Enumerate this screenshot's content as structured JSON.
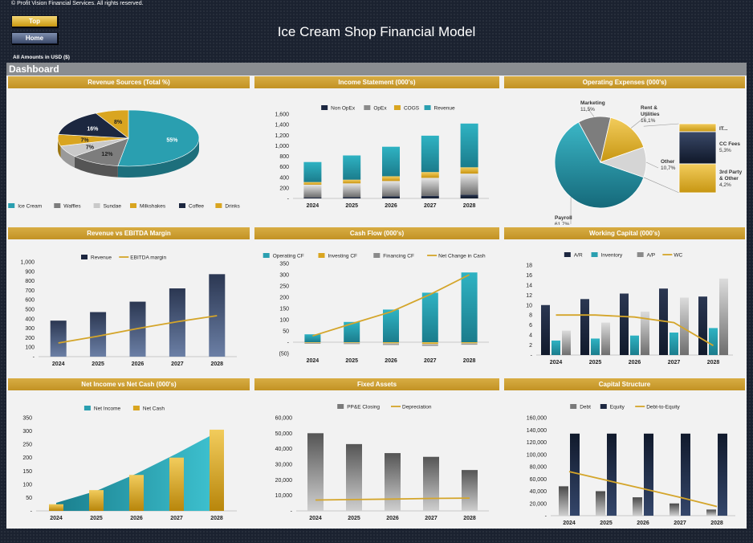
{
  "header": {
    "copyright": "© Profit Vision Financial Services. All rights reserved.",
    "top_button": "Top",
    "home_button": "Home",
    "title": "Ice Cream Shop Financial Model",
    "amounts_note": "All Amounts in  USD ($)",
    "dashboard_label": "Dashboard"
  },
  "colors": {
    "navy": "#1c2740",
    "teal": "#2a9fb0",
    "gold": "#d9a520",
    "gray": "#7a7a7a",
    "line_gold": "#d4a52a",
    "panel_bar": "#caa035"
  },
  "chart_data": [
    {
      "id": "revenue-sources",
      "type": "pie",
      "title": "Revenue Sources (Total %)",
      "legend": [
        "Ice Cream",
        "Waffles",
        "Sundae",
        "Milkshakes",
        "Coffee",
        "Drinks"
      ],
      "values": [
        55,
        12,
        7,
        7,
        16,
        8
      ],
      "labels": [
        "55%",
        "12%",
        "7%",
        "7%",
        "16%",
        "8%"
      ],
      "legend_position": "bottom",
      "style": "3d"
    },
    {
      "id": "income-statement",
      "type": "bar",
      "stacked": true,
      "title": "Income Statement (000's)",
      "categories": [
        "2024",
        "2025",
        "2026",
        "2027",
        "2028"
      ],
      "yticks": [
        "1,600",
        "1,400",
        "1,200",
        "1,000",
        "800",
        "600",
        "400",
        "200",
        "-"
      ],
      "ylim": [
        0,
        1600
      ],
      "series": [
        {
          "name": "Non OpEx",
          "values": [
            20,
            25,
            40,
            50,
            70
          ]
        },
        {
          "name": "OpEx",
          "values": [
            240,
            260,
            290,
            340,
            400
          ]
        },
        {
          "name": "COGS",
          "values": [
            50,
            70,
            90,
            110,
            120
          ]
        },
        {
          "name": "Revenue",
          "values": [
            380,
            460,
            560,
            690,
            830
          ]
        }
      ],
      "legend_position": "top"
    },
    {
      "id": "operating-expenses",
      "type": "pie",
      "title": "Operating Expenses (000's)",
      "slices": [
        {
          "name": "Payroll",
          "value": "61,7%"
        },
        {
          "name": "Marketing",
          "value": "11,5%"
        },
        {
          "name": "Rent & Utilities",
          "value": "16,1%"
        },
        {
          "name": "Other",
          "value": "10,7%"
        }
      ],
      "values": [
        61.7,
        11.5,
        16.1,
        10.7
      ],
      "breakdown": [
        {
          "name": "IT...",
          "value": ""
        },
        {
          "name": "CC Fees",
          "value": "5,3%"
        },
        {
          "name": "3rd Party & Other",
          "value": "4,2%"
        }
      ],
      "breakdown_values": [
        1.2,
        5.3,
        4.2
      ],
      "style": "pie-of-pie"
    },
    {
      "id": "revenue-ebitda",
      "type": "bar",
      "title": "Revenue vs EBITDA Margin",
      "categories": [
        "2024",
        "2025",
        "2026",
        "2027",
        "2028"
      ],
      "yticks": [
        "1,000",
        "900",
        "800",
        "700",
        "600",
        "500",
        "400",
        "300",
        "200",
        "100",
        "-"
      ],
      "ylim": [
        0,
        1000
      ],
      "series": [
        {
          "name": "Revenue",
          "values": [
            380,
            470,
            580,
            720,
            870
          ]
        }
      ],
      "line_series": [
        {
          "name": "EBITDA margin",
          "values": [
            0.16,
            0.24,
            0.33,
            0.41,
            0.48
          ]
        }
      ],
      "legend_position": "top"
    },
    {
      "id": "cash-flow",
      "type": "bar",
      "title": "Cash Flow (000's)",
      "categories": [
        "2024",
        "2025",
        "2026",
        "2027",
        "2028"
      ],
      "yticks": [
        "350",
        "300",
        "250",
        "200",
        "150",
        "100",
        "50",
        "-",
        "(50)"
      ],
      "ylim": [
        -50,
        350
      ],
      "series": [
        {
          "name": "Operating CF",
          "values": [
            35,
            90,
            145,
            220,
            310
          ]
        },
        {
          "name": "Investing CF",
          "values": [
            -3,
            -3,
            -5,
            -8,
            -5
          ]
        },
        {
          "name": "Financing CF",
          "values": [
            -4,
            -5,
            -7,
            -8,
            -6
          ]
        }
      ],
      "line_series": [
        {
          "name": "Net Change in Cash",
          "values": [
            28,
            82,
            135,
            212,
            300
          ]
        }
      ],
      "legend_position": "top"
    },
    {
      "id": "working-capital",
      "type": "bar",
      "title": "Working Capital (000's)",
      "categories": [
        "2024",
        "2025",
        "2026",
        "2027",
        "2028"
      ],
      "yticks": [
        "18",
        "16",
        "14",
        "12",
        "10",
        "8",
        "6",
        "4",
        "2",
        "-"
      ],
      "ylim": [
        0,
        18
      ],
      "series": [
        {
          "name": "A/R",
          "values": [
            10,
            11.2,
            12.3,
            13.3,
            11.7
          ]
        },
        {
          "name": "Inventory",
          "values": [
            2.9,
            3.3,
            3.9,
            4.5,
            5.4
          ]
        },
        {
          "name": "A/P",
          "values": [
            4.9,
            6.5,
            8.7,
            11.5,
            15.3
          ]
        }
      ],
      "line_series": [
        {
          "name": "WC",
          "values": [
            8,
            8,
            7.6,
            6.5,
            1.9
          ]
        }
      ],
      "legend_position": "top"
    },
    {
      "id": "net-income-cash",
      "type": "area",
      "title": "Net Income vs Net Cash (000's)",
      "categories": [
        "2024",
        "2025",
        "2026",
        "2027",
        "2028"
      ],
      "yticks": [
        "350",
        "300",
        "250",
        "200",
        "150",
        "100",
        "50",
        "-"
      ],
      "ylim": [
        0,
        350
      ],
      "series": [
        {
          "name": "Net Income",
          "values": [
            30,
            75,
            140,
            215,
            295
          ]
        },
        {
          "name": "Net Cash",
          "values": [
            25,
            78,
            135,
            200,
            305
          ]
        }
      ],
      "legend_position": "top"
    },
    {
      "id": "fixed-assets",
      "type": "bar",
      "title": "Fixed Assets",
      "categories": [
        "2024",
        "2025",
        "2026",
        "2027",
        "2028"
      ],
      "yticks": [
        "60,000",
        "50,000",
        "40,000",
        "30,000",
        "20,000",
        "10,000",
        "-"
      ],
      "ylim": [
        0,
        60000
      ],
      "series": [
        {
          "name": "PP&E Closing",
          "values": [
            50000,
            43000,
            37200,
            34800,
            26300
          ]
        }
      ],
      "line_series": [
        {
          "name": "Depreciation",
          "values": [
            7000,
            7300,
            7600,
            8000,
            8200
          ]
        }
      ],
      "legend_position": "top"
    },
    {
      "id": "capital-structure",
      "type": "bar",
      "title": "Capital Structure",
      "categories": [
        "2024",
        "2025",
        "2026",
        "2027",
        "2028"
      ],
      "yticks": [
        "160,000",
        "140,000",
        "120,000",
        "100,000",
        "80,000",
        "60,000",
        "40,000",
        "20,000",
        "-"
      ],
      "ylim": [
        0,
        160000
      ],
      "series": [
        {
          "name": "Debt",
          "values": [
            48000,
            40000,
            30000,
            20000,
            10000
          ]
        },
        {
          "name": "Equity",
          "values": [
            134000,
            134000,
            134000,
            134000,
            134000
          ]
        }
      ],
      "line_series": [
        {
          "name": "Debt-to-Equity",
          "values": [
            72000,
            58000,
            44000,
            30000,
            15000
          ]
        }
      ],
      "legend_position": "top"
    }
  ]
}
